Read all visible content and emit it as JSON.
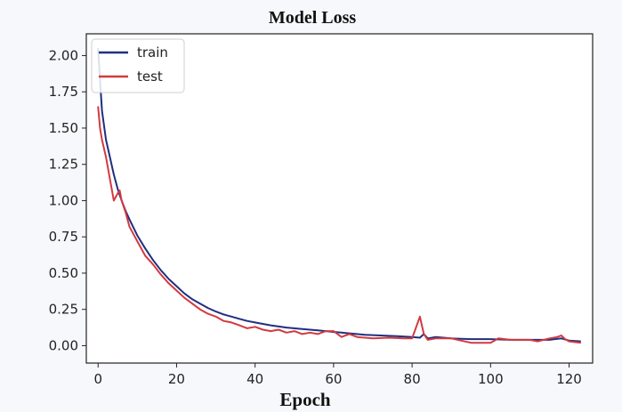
{
  "chart_data": {
    "type": "line",
    "title": "Model Loss",
    "xlabel": "Epoch",
    "ylabel": "",
    "xlim": [
      -3,
      126
    ],
    "ylim": [
      -0.12,
      2.15
    ],
    "xticks": [
      0,
      20,
      40,
      60,
      80,
      100,
      120
    ],
    "xtick_labels": [
      "0",
      "20",
      "40",
      "60",
      "80",
      "100",
      "120"
    ],
    "yticks": [
      0.0,
      0.25,
      0.5,
      0.75,
      1.0,
      1.25,
      1.5,
      1.75,
      2.0
    ],
    "ytick_labels": [
      "0.00",
      "0.25",
      "0.50",
      "0.75",
      "1.00",
      "1.25",
      "1.50",
      "1.75",
      "2.00"
    ],
    "grid": false,
    "legend_position": "top-left",
    "series": [
      {
        "name": "train",
        "color": "#1f2f80",
        "x": [
          0,
          1,
          2,
          3,
          4,
          5,
          6,
          7,
          8,
          10,
          12,
          14,
          16,
          18,
          20,
          22,
          24,
          26,
          28,
          30,
          32,
          34,
          36,
          38,
          40,
          44,
          48,
          52,
          56,
          60,
          64,
          68,
          72,
          76,
          80,
          82,
          83,
          84,
          86,
          90,
          95,
          100,
          105,
          110,
          115,
          118,
          120,
          123
        ],
        "y": [
          2.05,
          1.62,
          1.42,
          1.3,
          1.18,
          1.08,
          1.0,
          0.93,
          0.87,
          0.76,
          0.67,
          0.59,
          0.52,
          0.46,
          0.41,
          0.36,
          0.32,
          0.29,
          0.26,
          0.235,
          0.215,
          0.2,
          0.185,
          0.17,
          0.16,
          0.14,
          0.125,
          0.115,
          0.105,
          0.095,
          0.085,
          0.075,
          0.07,
          0.065,
          0.06,
          0.055,
          0.08,
          0.05,
          0.06,
          0.05,
          0.045,
          0.045,
          0.04,
          0.04,
          0.04,
          0.05,
          0.035,
          0.03
        ]
      },
      {
        "name": "test",
        "color": "#d23a3f",
        "x": [
          0,
          0.5,
          1,
          2,
          3,
          4,
          5,
          5.5,
          6,
          7,
          8,
          10,
          12,
          14,
          16,
          18,
          20,
          22,
          24,
          26,
          28,
          30,
          32,
          34,
          36,
          38,
          40,
          42,
          44,
          46,
          48,
          50,
          52,
          54,
          56,
          58,
          60,
          62,
          64,
          66,
          70,
          74,
          78,
          80,
          82,
          82.5,
          83,
          84,
          86,
          90,
          95,
          100,
          102,
          105,
          110,
          112,
          115,
          117,
          118,
          119,
          120,
          123
        ],
        "y": [
          1.65,
          1.5,
          1.42,
          1.3,
          1.15,
          1.0,
          1.05,
          1.07,
          1.0,
          0.92,
          0.82,
          0.72,
          0.62,
          0.56,
          0.49,
          0.43,
          0.38,
          0.33,
          0.29,
          0.25,
          0.22,
          0.2,
          0.17,
          0.16,
          0.14,
          0.12,
          0.13,
          0.11,
          0.1,
          0.11,
          0.09,
          0.1,
          0.08,
          0.09,
          0.08,
          0.1,
          0.1,
          0.06,
          0.08,
          0.06,
          0.05,
          0.055,
          0.05,
          0.05,
          0.2,
          0.14,
          0.08,
          0.04,
          0.05,
          0.05,
          0.02,
          0.02,
          0.05,
          0.04,
          0.04,
          0.03,
          0.05,
          0.06,
          0.07,
          0.045,
          0.03,
          0.02
        ]
      }
    ]
  }
}
